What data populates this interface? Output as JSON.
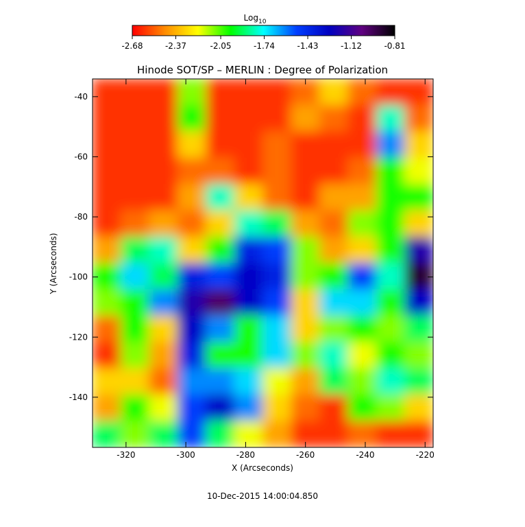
{
  "chart_data": {
    "type": "heatmap",
    "title": "Hinode SOT/SP – MERLIN : Degree of Polarization",
    "x_label": "X (Arcseconds)",
    "y_label": "Y (Arcseconds)",
    "footnote": "10-Dec-2015 14:00:04.850",
    "colorbar_label": "Log",
    "colorbar_label_sub": "10",
    "colorbar_lim": [
      -2.68,
      -0.81
    ],
    "colorbar_ticks": [
      -2.68,
      -2.37,
      -2.05,
      -1.74,
      -1.43,
      -1.12,
      -0.81
    ],
    "colormap": [
      "#ff0000",
      "#ff8c00",
      "#ffff00",
      "#00ff00",
      "#00ffff",
      "#0040ff",
      "#0000c0",
      "#600080",
      "#000000"
    ],
    "xlim": [
      -331.2,
      -217.3
    ],
    "ylim": [
      -156.7,
      -34.1
    ],
    "xticks": [
      -320,
      -300,
      -280,
      -260,
      -240,
      -220
    ],
    "yticks": [
      -140,
      -120,
      -100,
      -80,
      -60,
      -40
    ],
    "z": [
      [
        -2.6,
        -2.6,
        -2.6,
        -2.1,
        -2.6,
        -2.6,
        -2.6,
        -2.5,
        -2.3,
        -2.5,
        -2.6,
        -2.6
      ],
      [
        -2.6,
        -2.6,
        -2.6,
        -2.0,
        -2.6,
        -2.6,
        -2.6,
        -2.4,
        -2.5,
        -2.6,
        -1.8,
        -2.5
      ],
      [
        -2.6,
        -2.6,
        -2.6,
        -2.3,
        -2.6,
        -2.6,
        -2.5,
        -2.6,
        -2.6,
        -2.6,
        -1.6,
        -2.3
      ],
      [
        -2.6,
        -2.6,
        -2.6,
        -2.5,
        -2.5,
        -2.6,
        -2.5,
        -2.6,
        -2.6,
        -2.5,
        -2.0,
        -2.2
      ],
      [
        -2.6,
        -2.6,
        -2.6,
        -2.4,
        -1.8,
        -2.3,
        -2.5,
        -2.6,
        -2.4,
        -2.4,
        -2.0,
        -2.0
      ],
      [
        -2.6,
        -2.5,
        -2.4,
        -2.5,
        -2.3,
        -1.8,
        -1.9,
        -2.4,
        -2.5,
        -2.1,
        -2.0,
        -2.3
      ],
      [
        -2.4,
        -1.9,
        -1.8,
        -2.3,
        -2.0,
        -1.4,
        -1.5,
        -2.1,
        -2.4,
        -2.3,
        -2.0,
        -1.2
      ],
      [
        -2.0,
        -1.7,
        -1.9,
        -1.4,
        -1.5,
        -1.3,
        -1.4,
        -2.1,
        -2.0,
        -1.5,
        -1.8,
        -0.9
      ],
      [
        -2.1,
        -2.0,
        -1.6,
        -1.2,
        -1.0,
        -1.3,
        -1.5,
        -2.3,
        -1.7,
        -1.7,
        -2.0,
        -1.3
      ],
      [
        -2.5,
        -2.0,
        -2.3,
        -1.3,
        -1.6,
        -2.0,
        -1.7,
        -2.3,
        -2.1,
        -2.0,
        -2.1,
        -1.9
      ],
      [
        -2.6,
        -2.1,
        -2.4,
        -1.4,
        -2.0,
        -2.0,
        -1.7,
        -2.1,
        -1.8,
        -2.2,
        -2.0,
        -2.1
      ],
      [
        -2.3,
        -2.3,
        -2.5,
        -1.6,
        -1.6,
        -1.7,
        -2.2,
        -2.4,
        -1.9,
        -2.1,
        -1.8,
        -1.9
      ],
      [
        -2.4,
        -2.0,
        -2.2,
        -1.5,
        -1.3,
        -1.6,
        -2.3,
        -2.5,
        -2.6,
        -2.0,
        -2.1,
        -2.3
      ],
      [
        -1.9,
        -2.1,
        -1.9,
        -1.5,
        -1.9,
        -2.2,
        -2.4,
        -2.6,
        -2.6,
        -2.5,
        -2.6,
        -2.6
      ]
    ]
  }
}
